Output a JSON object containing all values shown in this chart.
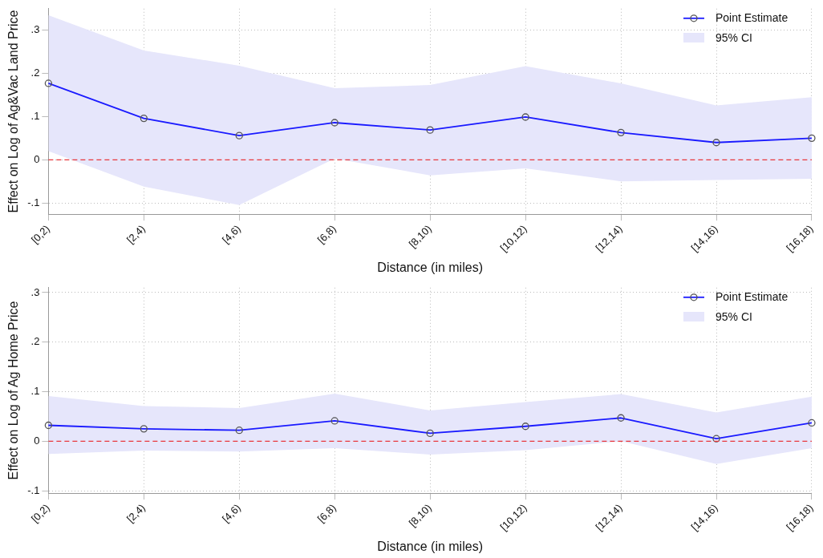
{
  "chart_data": [
    {
      "type": "line",
      "xlabel": "Distance (in miles)",
      "ylabel": "Effect on Log of Ag&Vac Land Price",
      "categories": [
        "[0,2)",
        "[2,4)",
        "[4,6)",
        "[6,8)",
        "[8,10)",
        "[10,12)",
        "[12,14)",
        "[14,16)",
        "[16,18)"
      ],
      "series": [
        {
          "name": "Point Estimate",
          "color": "#1a1aff",
          "values": [
            0.177,
            0.096,
            0.056,
            0.086,
            0.069,
            0.099,
            0.063,
            0.04,
            0.05
          ],
          "lower": [
            0.02,
            -0.062,
            -0.105,
            0.003,
            -0.036,
            -0.02,
            -0.05,
            -0.047,
            -0.044
          ],
          "upper": [
            0.335,
            0.253,
            0.218,
            0.166,
            0.173,
            0.217,
            0.177,
            0.126,
            0.145
          ]
        }
      ],
      "annotations": [
        "95% CI"
      ],
      "ylim": [
        -0.126,
        0.35
      ],
      "yticks": [
        {
          "value": -0.1,
          "label": "-.1"
        },
        0,
        {
          "value": 0.1,
          "label": ".1"
        },
        {
          "value": 0.2,
          "label": ".2"
        },
        {
          "value": 0.3,
          "label": ".3"
        }
      ],
      "ref_lines": [
        {
          "axis": "y",
          "value": 0,
          "color": "#e8383d",
          "line_style": "dashed"
        }
      ],
      "grid": true,
      "legend": "top right",
      "marker": "circle",
      "line_style": "solid"
    },
    {
      "type": "line",
      "xlabel": "Distance (in miles)",
      "ylabel": "Effect on Log of Ag Home Price",
      "categories": [
        "[0,2)",
        "[2,4)",
        "[4,6)",
        "[6,8)",
        "[8,10)",
        "[10,12)",
        "[12,14)",
        "[14,16)",
        "[16,18)"
      ],
      "series": [
        {
          "name": "Point Estimate",
          "color": "#1a1aff",
          "values": [
            0.032,
            0.025,
            0.022,
            0.041,
            0.016,
            0.03,
            0.047,
            0.005,
            0.037
          ],
          "lower": [
            -0.026,
            -0.019,
            -0.021,
            -0.014,
            -0.027,
            -0.018,
            0.0,
            -0.046,
            -0.014
          ],
          "upper": [
            0.091,
            0.071,
            0.067,
            0.096,
            0.062,
            0.079,
            0.095,
            0.058,
            0.09
          ]
        }
      ],
      "annotations": [
        "95% CI"
      ],
      "ylim": [
        -0.105,
        0.31
      ],
      "yticks": [
        {
          "value": -0.1,
          "label": "-.1"
        },
        0,
        {
          "value": 0.1,
          "label": ".1"
        },
        {
          "value": 0.2,
          "label": ".2"
        },
        {
          "value": 0.3,
          "label": ".3"
        }
      ],
      "ref_lines": [
        {
          "axis": "y",
          "value": 0,
          "color": "#e8383d",
          "line_style": "dashed"
        }
      ],
      "grid": true,
      "legend": "top right",
      "marker": "circle",
      "line_style": "solid"
    }
  ]
}
